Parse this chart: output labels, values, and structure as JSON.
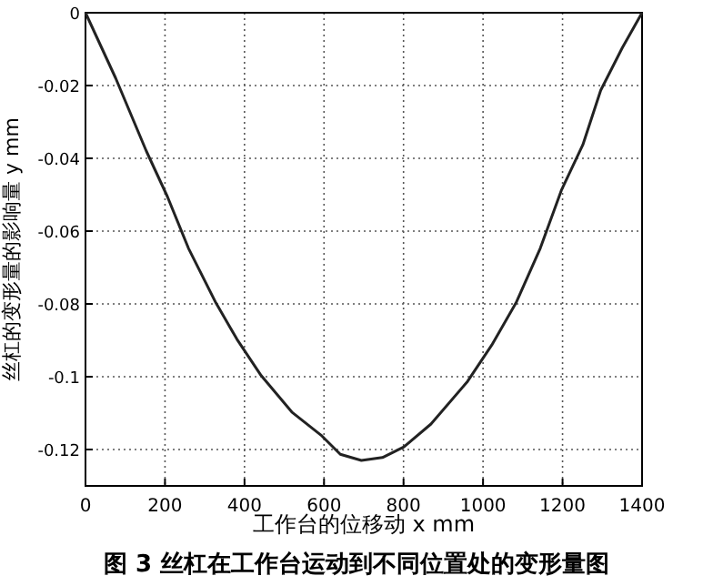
{
  "chart_data": {
    "type": "line",
    "title": "图 3  丝杠在工作台运动到不同位置处的变形量图",
    "xlabel": "工作台的位移动  x mm",
    "ylabel": "丝杠的变形量的影响量  y mm",
    "xlim": [
      0,
      1400
    ],
    "xticks": [
      0,
      200,
      400,
      600,
      800,
      1000,
      1200,
      1400
    ],
    "ylim": [
      -0.13,
      0
    ],
    "yticks": [
      0,
      -0.02,
      -0.04,
      -0.06,
      -0.08,
      -0.1,
      -0.12
    ],
    "grid": true,
    "series": [
      {
        "color": "#222222",
        "line_style": "solid",
        "x": [
          0,
          76,
          153,
          206,
          259,
          328,
          381,
          442,
          519,
          595,
          641,
          694,
          747,
          801,
          869,
          961,
          1022,
          1083,
          1144,
          1197,
          1251,
          1296,
          1350,
          1400
        ],
        "values": [
          0,
          -0.018,
          -0.038,
          -0.0505,
          -0.0647,
          -0.0797,
          -0.0897,
          -0.0997,
          -0.1097,
          -0.1163,
          -0.1213,
          -0.123,
          -0.1222,
          -0.1193,
          -0.113,
          -0.1013,
          -0.0913,
          -0.0797,
          -0.0647,
          -0.0488,
          -0.0363,
          -0.0213,
          -0.0097,
          0
        ]
      }
    ]
  }
}
